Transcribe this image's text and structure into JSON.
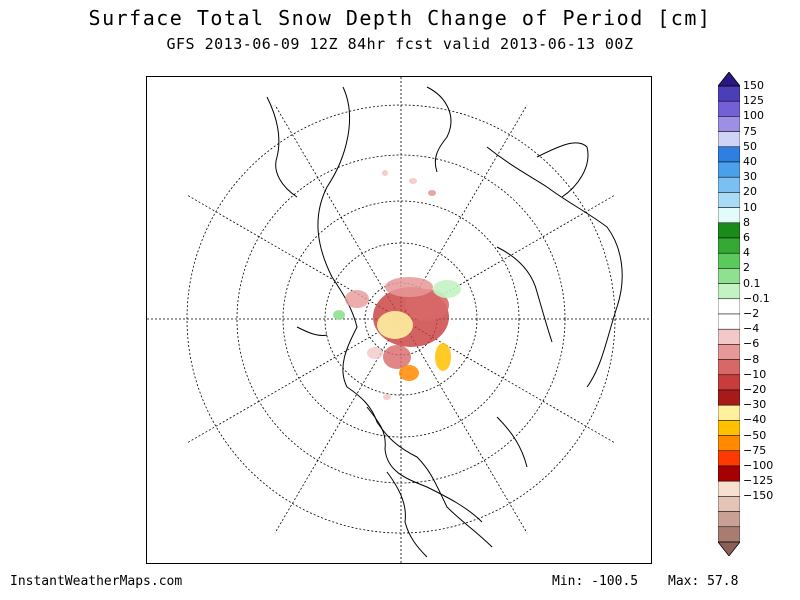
{
  "title": "Surface Total Snow Depth Change of Period [cm]",
  "subtitle": "GFS 2013-06-09 12Z 84hr fcst valid 2013-06-13 00Z",
  "footer": {
    "source": "InstantWeatherMaps.com",
    "min": "Min: -100.5",
    "max": "Max:  57.8"
  },
  "legend": {
    "colors": [
      "#2a1780",
      "#4a3fb8",
      "#7360d6",
      "#9d8fe6",
      "#cfd4f6",
      "#2f7fe0",
      "#4aa0ea",
      "#7cc0f2",
      "#a8dcf6",
      "#e3fbfb",
      "#1a8a1a",
      "#35a835",
      "#5cc95c",
      "#8fe08f",
      "#c3f3c3",
      "#ffffff",
      "#ffffff",
      "#f3c8c8",
      "#e89898",
      "#d86868",
      "#c83c3c",
      "#a81a1a",
      "#fff0a0",
      "#ffc000",
      "#ff8a00",
      "#ff3a00",
      "#a60000",
      "#f6e0d0",
      "#e3c4b6",
      "#c8a094",
      "#a87c70",
      "#8a5f56"
    ],
    "labels": [
      "150",
      "125",
      "100",
      "75",
      "50",
      "40",
      "30",
      "20",
      "10",
      "8",
      "6",
      "4",
      "2",
      "0.1",
      "−0.1",
      "−2",
      "−4",
      "−6",
      "−8",
      "−10",
      "−20",
      "−30",
      "−40",
      "−50",
      "−75",
      "−100",
      "−125",
      "−150"
    ]
  }
}
